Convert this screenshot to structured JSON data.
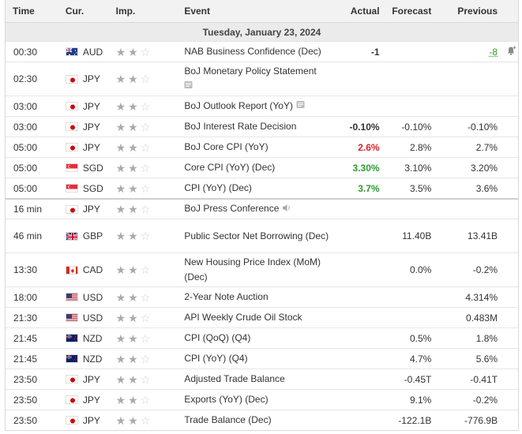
{
  "headers": {
    "time": "Time",
    "cur": "Cur.",
    "imp": "Imp.",
    "event": "Event",
    "actual": "Actual",
    "forecast": "Forecast",
    "previous": "Previous"
  },
  "date_label": "Tuesday, January 23, 2024",
  "colors": {
    "green": "#2e9c2e",
    "red": "#d8232a",
    "star_on": "#aaaaaa",
    "star_off": "#cfcfcf"
  },
  "rows": [
    {
      "time": "00:30",
      "cur": "AUD",
      "flag": "au-flag-icon",
      "stars": 2,
      "event": "NAB Business Confidence (Dec)",
      "actual": "-1",
      "forecast": "",
      "previous": "-8"
    },
    {
      "time": "02:30",
      "cur": "JPY",
      "flag": "jp-flag-icon",
      "stars": 2,
      "event": "BoJ Monetary Policy Statement",
      "actual": "",
      "forecast": "",
      "previous": ""
    },
    {
      "time": "03:00",
      "cur": "JPY",
      "flag": "jp-flag-icon",
      "stars": 2,
      "event": "BoJ Outlook Report (YoY)",
      "actual": "",
      "forecast": "",
      "previous": ""
    },
    {
      "time": "03:00",
      "cur": "JPY",
      "flag": "jp-flag-icon",
      "stars": 2,
      "event": "BoJ Interest Rate Decision",
      "actual": "-0.10%",
      "forecast": "-0.10%",
      "previous": "-0.10%"
    },
    {
      "time": "05:00",
      "cur": "JPY",
      "flag": "jp-flag-icon",
      "stars": 2,
      "event": "BoJ Core CPI (YoY)",
      "actual": "2.6%",
      "forecast": "2.8%",
      "previous": "2.7%"
    },
    {
      "time": "05:00",
      "cur": "SGD",
      "flag": "sg-flag-icon",
      "stars": 2,
      "event": "Core CPI (YoY) (Dec)",
      "actual": "3.30%",
      "forecast": "3.10%",
      "previous": "3.20%"
    },
    {
      "time": "05:00",
      "cur": "SGD",
      "flag": "sg-flag-icon",
      "stars": 2,
      "event": "CPI (YoY) (Dec)",
      "actual": "3.7%",
      "forecast": "3.5%",
      "previous": "3.6%"
    },
    {
      "time": "16 min",
      "cur": "JPY",
      "flag": "jp-flag-icon",
      "stars": 2,
      "event": "BoJ Press Conference",
      "actual": "",
      "forecast": "",
      "previous": ""
    },
    {
      "time": "46 min",
      "cur": "GBP",
      "flag": "gb-flag-icon",
      "stars": 2,
      "event": "Public Sector Net Borrowing (Dec)",
      "actual": "",
      "forecast": "11.40B",
      "previous": "13.41B"
    },
    {
      "time": "13:30",
      "cur": "CAD",
      "flag": "ca-flag-icon",
      "stars": 2,
      "event": "New Housing Price Index (MoM) (Dec)",
      "actual": "",
      "forecast": "0.0%",
      "previous": "-0.2%"
    },
    {
      "time": "18:00",
      "cur": "USD",
      "flag": "us-flag-icon",
      "stars": 2,
      "event": "2-Year Note Auction",
      "actual": "",
      "forecast": "",
      "previous": "4.314%"
    },
    {
      "time": "21:30",
      "cur": "USD",
      "flag": "us-flag-icon",
      "stars": 2,
      "event": "API Weekly Crude Oil Stock",
      "actual": "",
      "forecast": "",
      "previous": "0.483M"
    },
    {
      "time": "21:45",
      "cur": "NZD",
      "flag": "nz-flag-icon",
      "stars": 2,
      "event": "CPI (QoQ) (Q4)",
      "actual": "",
      "forecast": "0.5%",
      "previous": "1.8%"
    },
    {
      "time": "21:45",
      "cur": "NZD",
      "flag": "nz-flag-icon",
      "stars": 2,
      "event": "CPI (YoY) (Q4)",
      "actual": "",
      "forecast": "4.7%",
      "previous": "5.6%"
    },
    {
      "time": "23:50",
      "cur": "JPY",
      "flag": "jp-flag-icon",
      "stars": 2,
      "event": "Adjusted Trade Balance",
      "actual": "",
      "forecast": "-0.45T",
      "previous": "-0.41T"
    },
    {
      "time": "23:50",
      "cur": "JPY",
      "flag": "jp-flag-icon",
      "stars": 2,
      "event": "Exports (YoY) (Dec)",
      "actual": "",
      "forecast": "9.1%",
      "previous": "-0.2%"
    },
    {
      "time": "23:50",
      "cur": "JPY",
      "flag": "jp-flag-icon",
      "stars": 2,
      "event": "Trade Balance (Dec)",
      "actual": "",
      "forecast": "-122.1B",
      "previous": "-776.9B"
    }
  ]
}
